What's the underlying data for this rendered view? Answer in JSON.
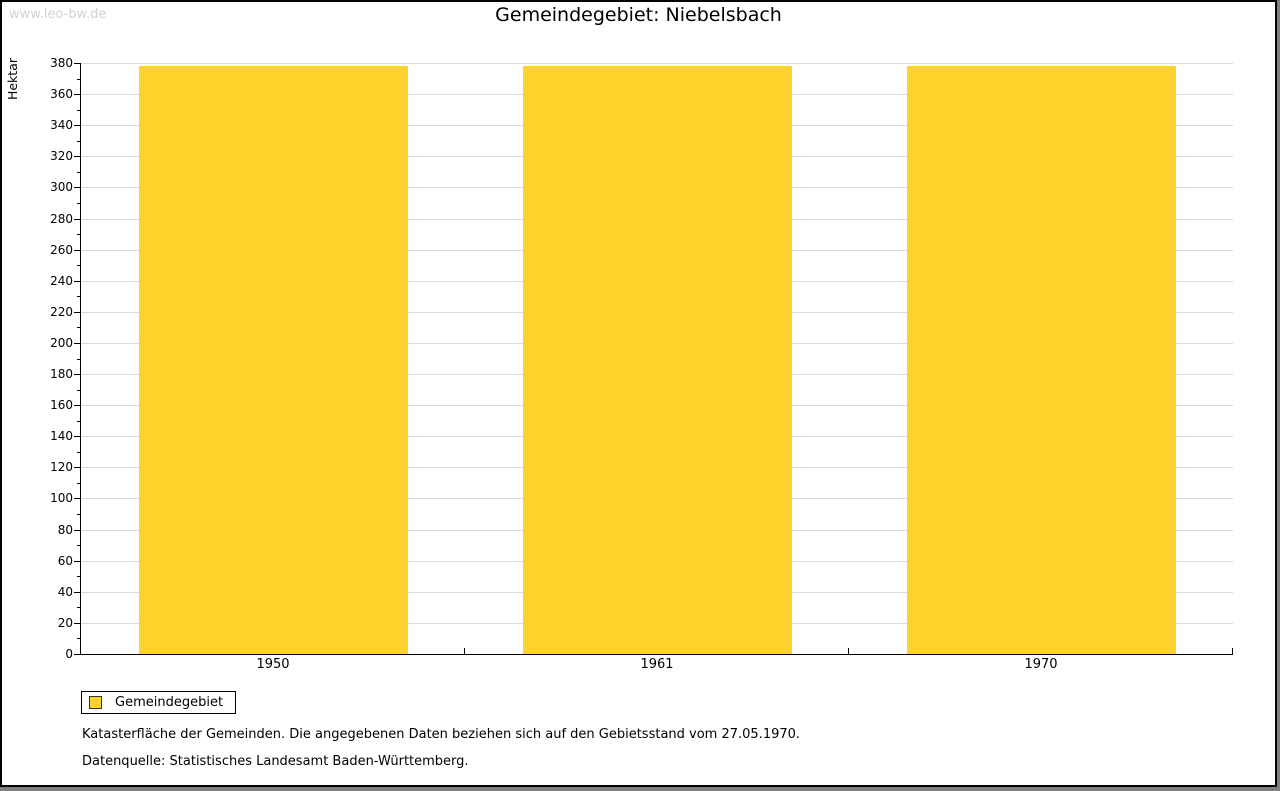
{
  "watermark": "www.leo-bw.de",
  "chart_data": {
    "type": "bar",
    "title": "Gemeindegebiet: Niebelsbach",
    "ylabel": "Hektar",
    "xlabel": "",
    "categories": [
      "1950",
      "1961",
      "1970"
    ],
    "series": [
      {
        "name": "Gemeindegebiet",
        "values": [
          378,
          378,
          378
        ]
      }
    ],
    "ylim": [
      0,
      380
    ],
    "ytick_step": 20,
    "yminor_step": 10,
    "grid": true,
    "legend_position": "bottom-left",
    "colors": {
      "bar": "#FDD32B",
      "gridline": "#D9D9D9",
      "axis": "#000000",
      "watermark": "#D2D2D2",
      "frame_shadow": "#808080"
    }
  },
  "legend": {
    "items": [
      {
        "label": "Gemeindegebiet",
        "color": "#FDD32B"
      }
    ]
  },
  "footnotes": [
    "Katasterfläche der Gemeinden. Die angegebenen Daten beziehen sich auf den Gebietsstand vom 27.05.1970.",
    "Datenquelle: Statistisches Landesamt Baden-Württemberg."
  ]
}
